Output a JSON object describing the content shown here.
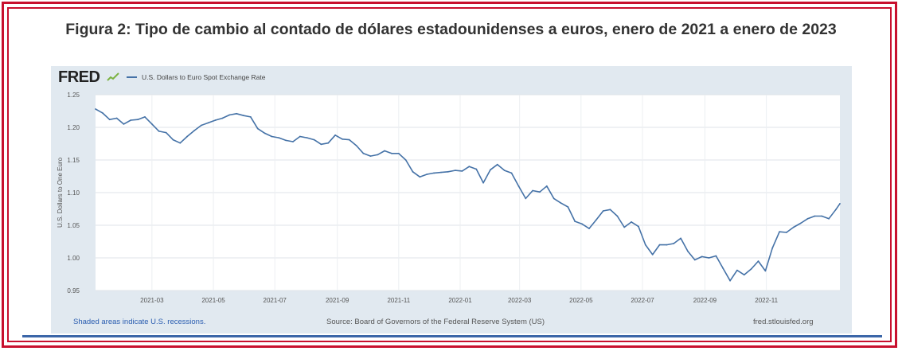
{
  "figure_title": "Figura 2: Tipo de cambio al contado de dólares estadounidenses a euros, enero de 2021 a enero de 2023",
  "fred": {
    "logo": "FRED",
    "legend_label": "U.S. Dollars to Euro Spot Exchange Rate",
    "footer_left": "Shaded areas indicate U.S. recessions.",
    "footer_source": "Source: Board of Governors of the Federal Reserve System (US)",
    "footer_right": "fred.stlouisfed.org"
  },
  "colors": {
    "frame": "#c8102e",
    "series": "#4572a7",
    "panel": "#e1e9f0"
  },
  "chart_data": {
    "type": "line",
    "title": "",
    "xlabel": "",
    "ylabel": "U.S. Dollars to One Euro",
    "ylim": [
      0.95,
      1.25
    ],
    "yticks": [
      "0.95",
      "1.00",
      "1.05",
      "1.10",
      "1.15",
      "1.20",
      "1.25"
    ],
    "ytick_values": [
      0.95,
      1.0,
      1.05,
      1.1,
      1.15,
      1.2,
      1.25
    ],
    "xlim": [
      "2021-01-04",
      "2023-01-13"
    ],
    "xticks": [
      "2021-03",
      "2021-05",
      "2021-07",
      "2021-09",
      "2021-11",
      "2022-01",
      "2022-03",
      "2022-05",
      "2022-07",
      "2022-09",
      "2022-11"
    ],
    "grid": true,
    "series": [
      {
        "name": "U.S. Dollars to Euro Spot Exchange Rate",
        "x": [
          "2021-01-04",
          "2021-01-11",
          "2021-01-18",
          "2021-01-25",
          "2021-02-01",
          "2021-02-08",
          "2021-02-15",
          "2021-02-22",
          "2021-03-01",
          "2021-03-08",
          "2021-03-15",
          "2021-03-22",
          "2021-03-29",
          "2021-04-05",
          "2021-04-12",
          "2021-04-19",
          "2021-04-26",
          "2021-05-03",
          "2021-05-10",
          "2021-05-17",
          "2021-05-24",
          "2021-05-31",
          "2021-06-07",
          "2021-06-14",
          "2021-06-21",
          "2021-06-28",
          "2021-07-05",
          "2021-07-12",
          "2021-07-19",
          "2021-07-26",
          "2021-08-02",
          "2021-08-09",
          "2021-08-16",
          "2021-08-23",
          "2021-08-30",
          "2021-09-06",
          "2021-09-13",
          "2021-09-20",
          "2021-09-27",
          "2021-10-04",
          "2021-10-11",
          "2021-10-18",
          "2021-10-25",
          "2021-11-01",
          "2021-11-08",
          "2021-11-15",
          "2021-11-22",
          "2021-11-29",
          "2021-12-06",
          "2021-12-13",
          "2021-12-20",
          "2021-12-27",
          "2022-01-03",
          "2022-01-10",
          "2022-01-17",
          "2022-01-24",
          "2022-01-31",
          "2022-02-07",
          "2022-02-14",
          "2022-02-21",
          "2022-02-28",
          "2022-03-07",
          "2022-03-14",
          "2022-03-21",
          "2022-03-28",
          "2022-04-04",
          "2022-04-11",
          "2022-04-18",
          "2022-04-25",
          "2022-05-02",
          "2022-05-09",
          "2022-05-16",
          "2022-05-23",
          "2022-05-30",
          "2022-06-06",
          "2022-06-13",
          "2022-06-20",
          "2022-06-27",
          "2022-07-04",
          "2022-07-11",
          "2022-07-18",
          "2022-07-25",
          "2022-08-01",
          "2022-08-08",
          "2022-08-15",
          "2022-08-22",
          "2022-08-29",
          "2022-09-05",
          "2022-09-12",
          "2022-09-19",
          "2022-09-26",
          "2022-10-03",
          "2022-10-10",
          "2022-10-17",
          "2022-10-24",
          "2022-10-31",
          "2022-11-07",
          "2022-11-14",
          "2022-11-21",
          "2022-11-28",
          "2022-12-05",
          "2022-12-12",
          "2022-12-19",
          "2022-12-26",
          "2023-01-02",
          "2023-01-09",
          "2023-01-13"
        ],
        "values": [
          1.228,
          1.222,
          1.212,
          1.214,
          1.205,
          1.211,
          1.212,
          1.216,
          1.205,
          1.194,
          1.192,
          1.181,
          1.176,
          1.186,
          1.195,
          1.203,
          1.207,
          1.211,
          1.214,
          1.219,
          1.221,
          1.218,
          1.216,
          1.198,
          1.191,
          1.186,
          1.184,
          1.18,
          1.178,
          1.186,
          1.184,
          1.181,
          1.174,
          1.176,
          1.188,
          1.182,
          1.181,
          1.172,
          1.16,
          1.156,
          1.158,
          1.164,
          1.16,
          1.16,
          1.15,
          1.132,
          1.124,
          1.128,
          1.13,
          1.131,
          1.132,
          1.134,
          1.133,
          1.14,
          1.136,
          1.115,
          1.135,
          1.143,
          1.134,
          1.13,
          1.11,
          1.091,
          1.103,
          1.101,
          1.11,
          1.091,
          1.084,
          1.078,
          1.056,
          1.052,
          1.045,
          1.058,
          1.072,
          1.074,
          1.064,
          1.047,
          1.055,
          1.048,
          1.02,
          1.005,
          1.02,
          1.02,
          1.022,
          1.03,
          1.01,
          0.997,
          1.002,
          1.0,
          1.003,
          0.984,
          0.965,
          0.981,
          0.974,
          0.983,
          0.995,
          0.98,
          1.015,
          1.04,
          1.039,
          1.047,
          1.053,
          1.06,
          1.064,
          1.064,
          1.06,
          1.074,
          1.083
        ]
      }
    ]
  }
}
